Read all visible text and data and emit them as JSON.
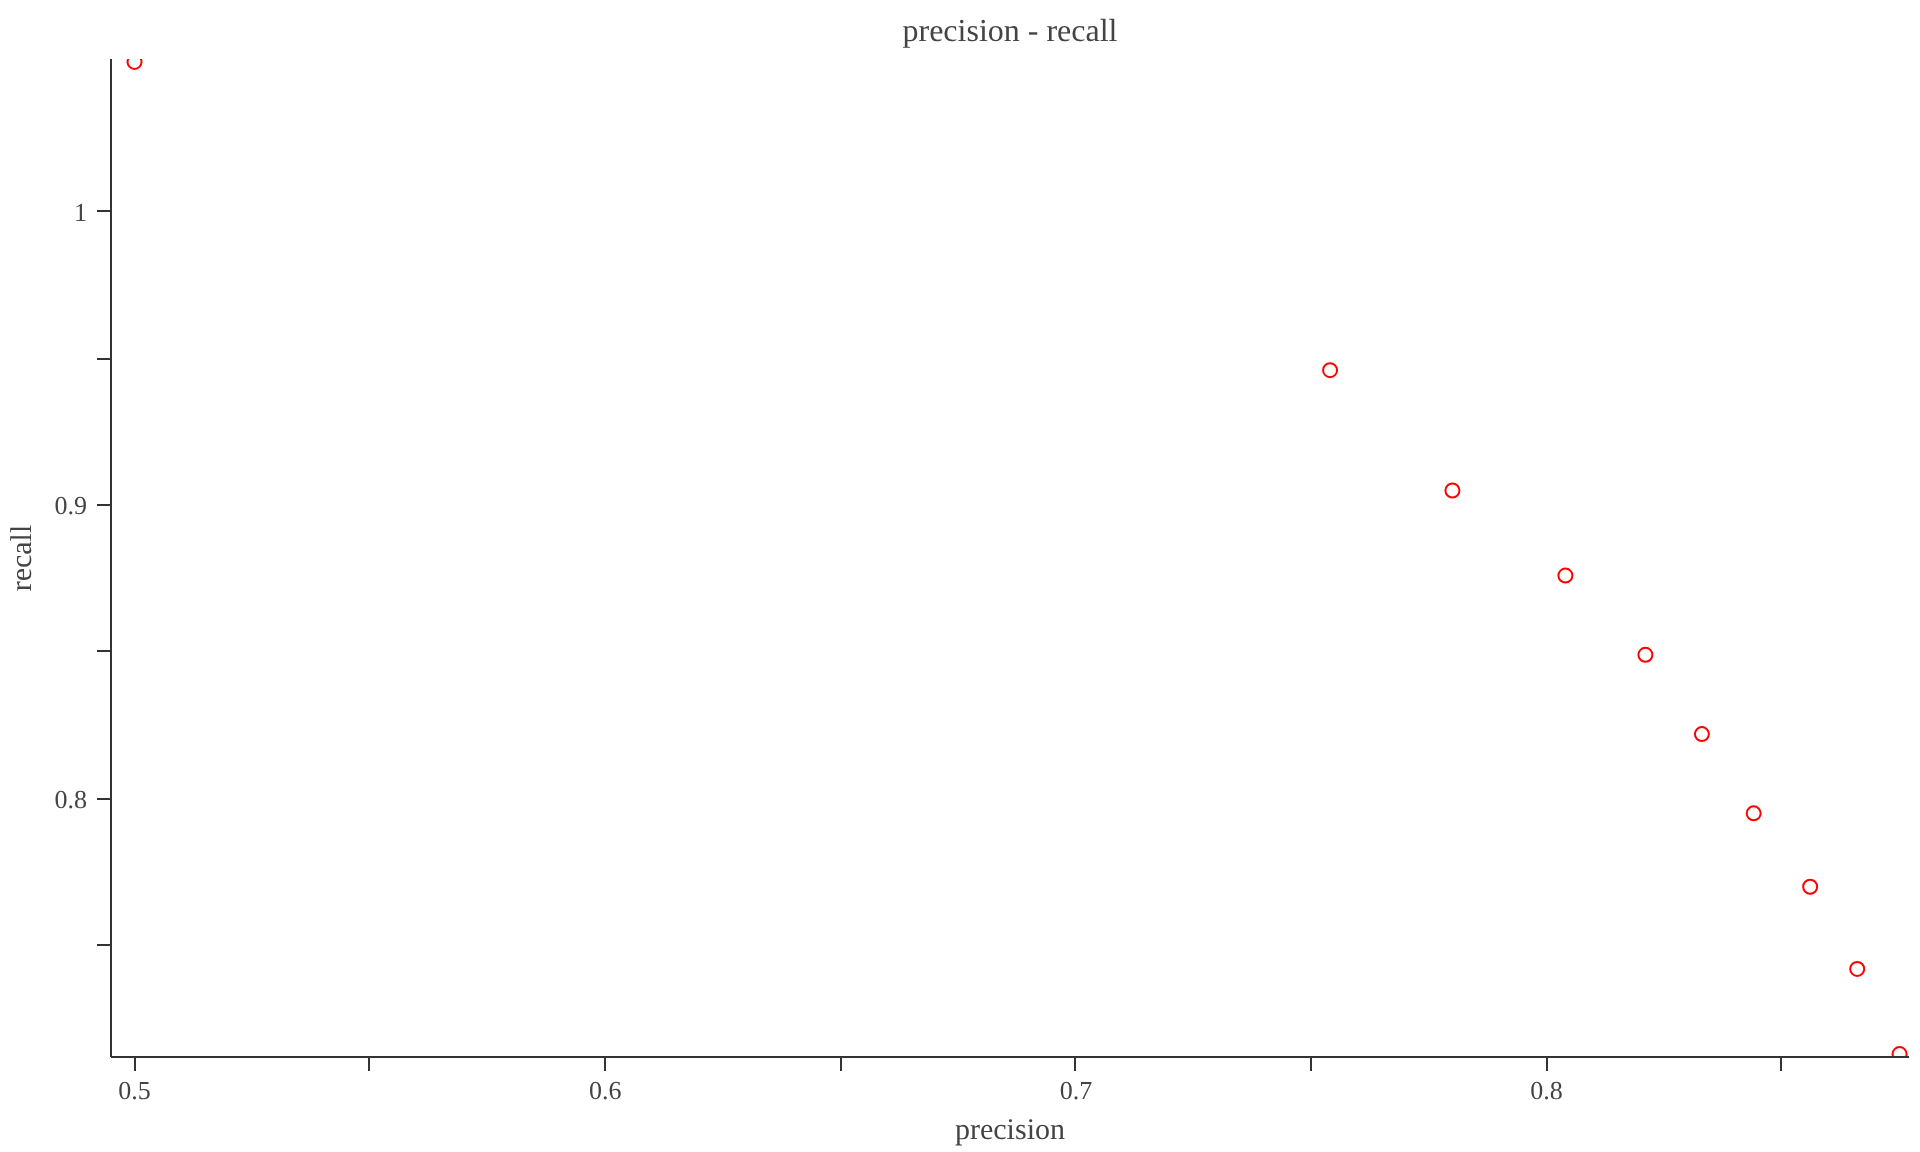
{
  "chart_data": {
    "type": "scatter",
    "title": "precision - recall",
    "xlabel": "precision",
    "ylabel": "recall",
    "x": [
      0.5,
      0.754,
      0.78,
      0.804,
      0.821,
      0.833,
      0.844,
      0.856,
      0.866,
      0.875
    ],
    "series": [
      {
        "color": "#ff0000",
        "values": [
          1.051,
          0.946,
          0.905,
          0.876,
          0.849,
          0.822,
          0.795,
          0.77,
          0.742,
          0.713
        ]
      }
    ],
    "xlim": [
      0.495,
      0.877
    ],
    "ylim": [
      0.712,
      1.052
    ],
    "xticks": [
      0.5,
      {
        "value": 0.55,
        "label": null
      },
      0.6,
      {
        "value": 0.65,
        "label": null
      },
      0.7,
      {
        "value": 0.75,
        "label": null
      },
      0.8,
      {
        "value": 0.85,
        "label": null
      }
    ],
    "yticks": [
      {
        "value": 0.75,
        "label": null
      },
      0.8,
      {
        "value": 0.85,
        "label": null
      },
      0.9,
      {
        "value": 0.95,
        "label": null
      },
      {
        "value": 1,
        "label": "1"
      }
    ],
    "grid": false,
    "marker": "circle"
  }
}
